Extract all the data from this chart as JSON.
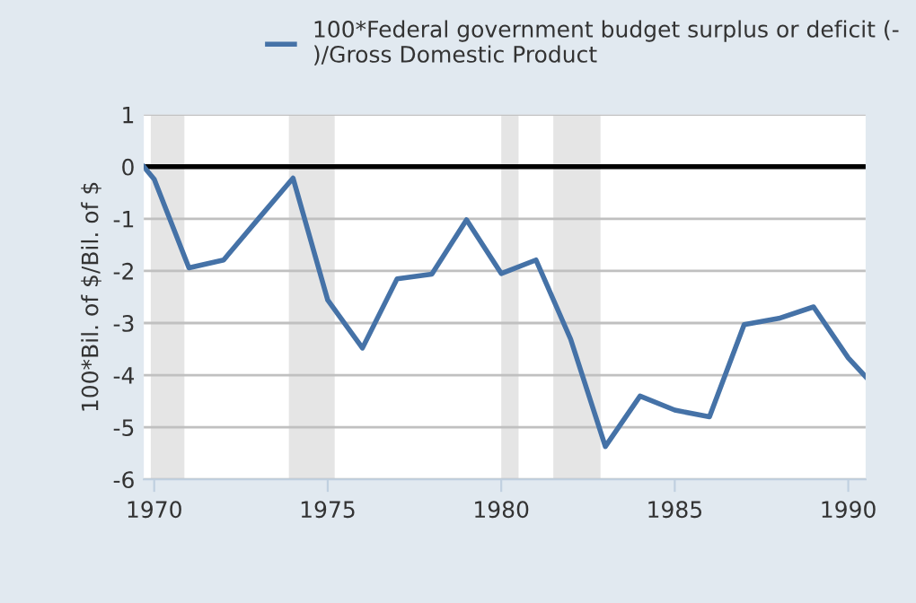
{
  "chart_data": {
    "type": "line",
    "ylabel": "100*Bil. of $/Bil. of $",
    "x": [
      1969.7,
      1970,
      1971,
      1972,
      1973,
      1974,
      1975,
      1976,
      1977,
      1978,
      1979,
      1980,
      1981,
      1982,
      1983,
      1984,
      1985,
      1986,
      1987,
      1988,
      1989,
      1990,
      1990.5
    ],
    "series": [
      {
        "name": "100*Federal government budget surplus or deficit (-\n)/Gross Domestic Product",
        "color": "#4572a7",
        "values": [
          0.0,
          -0.24,
          -1.94,
          -1.79,
          -1.0,
          -0.22,
          -2.56,
          -3.48,
          -2.15,
          -2.06,
          -1.02,
          -2.05,
          -1.79,
          -3.31,
          -5.37,
          -4.4,
          -4.67,
          -4.8,
          -3.03,
          -2.91,
          -2.69,
          -3.67,
          -4.03
        ]
      }
    ],
    "xlim": [
      1969.7,
      1990.5
    ],
    "xticks": [
      1970,
      1975,
      1980,
      1985,
      1990
    ],
    "ylim": [
      -6,
      1
    ],
    "yticks": [
      1,
      0,
      -1,
      -2,
      -3,
      -4,
      -5,
      -6
    ],
    "ref_lines": [
      {
        "axis": "y",
        "value": 0,
        "color": "#000000"
      }
    ],
    "bands": [
      {
        "axis": "x",
        "from": 1969.9,
        "to": 1970.87,
        "color": "#e5e5e5"
      },
      {
        "axis": "x",
        "from": 1973.88,
        "to": 1975.2,
        "color": "#e5e5e5"
      },
      {
        "axis": "x",
        "from": 1980.0,
        "to": 1980.5,
        "color": "#e5e5e5"
      },
      {
        "axis": "x",
        "from": 1981.5,
        "to": 1982.86,
        "color": "#e5e5e5"
      }
    ],
    "grid": "y",
    "legend": "top",
    "marker": "none",
    "line_style": "solid"
  }
}
